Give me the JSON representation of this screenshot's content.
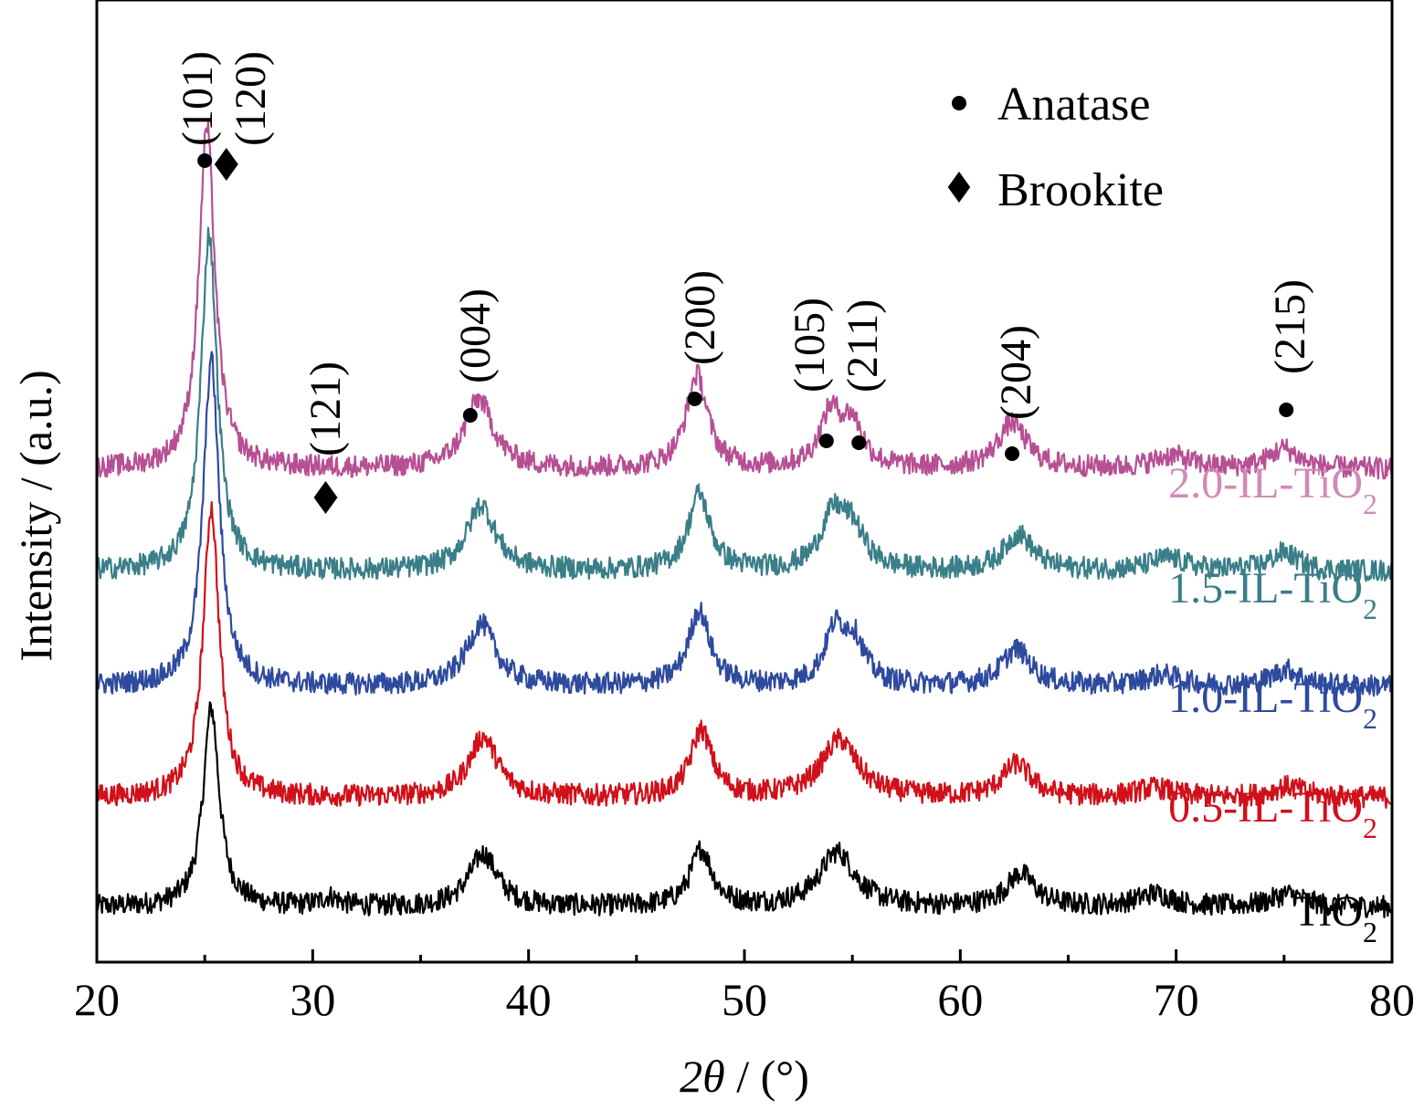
{
  "chart_data": {
    "type": "line",
    "title": "",
    "xlabel": "2θ / (°)",
    "xlabel_parts": {
      "var": "2θ",
      "rest": " / (°)"
    },
    "ylabel": "Intensity / (a.u.)",
    "xlim": [
      20,
      80
    ],
    "x_ticks": [
      20,
      30,
      40,
      50,
      60,
      70,
      80
    ],
    "x_tick_labels": [
      "20",
      "30",
      "40",
      "50",
      "60",
      "70",
      "80"
    ],
    "y_ticks_visible": false,
    "grid": false,
    "legend": {
      "placement": "top-right",
      "items": [
        {
          "marker": "circle",
          "label": "Anatase"
        },
        {
          "marker": "diamond",
          "label": "Brookite"
        }
      ]
    },
    "series": [
      {
        "name": "TiO2",
        "label_main": "TiO",
        "label_sub": "2",
        "color": "#000000",
        "baseline": 40,
        "noise": 12,
        "peaks": [
          {
            "x": 25.3,
            "height": 218,
            "width": 0.45
          },
          {
            "x": 30.8,
            "height": 10,
            "width": 0.5
          },
          {
            "x": 37.9,
            "height": 58,
            "width": 0.8
          },
          {
            "x": 48.0,
            "height": 62,
            "width": 0.6
          },
          {
            "x": 54.3,
            "height": 60,
            "width": 1.0
          },
          {
            "x": 62.8,
            "height": 36,
            "width": 0.8
          },
          {
            "x": 69.0,
            "height": 14,
            "width": 1.0
          },
          {
            "x": 75.2,
            "height": 14,
            "width": 0.9
          }
        ]
      },
      {
        "name": "0.5-IL-TiO2",
        "label_main": "0.5-IL-TiO",
        "label_sub": "2",
        "color": "#d0101a",
        "baseline": 160,
        "noise": 12,
        "peaks": [
          {
            "x": 25.3,
            "height": 318,
            "width": 0.45
          },
          {
            "x": 37.9,
            "height": 66,
            "width": 0.8
          },
          {
            "x": 48.0,
            "height": 73,
            "width": 0.6
          },
          {
            "x": 54.4,
            "height": 63,
            "width": 1.0
          },
          {
            "x": 62.6,
            "height": 36,
            "width": 0.8
          },
          {
            "x": 69.0,
            "height": 10,
            "width": 1.0
          },
          {
            "x": 75.2,
            "height": 12,
            "width": 0.9
          }
        ]
      },
      {
        "name": "1.0-IL-TiO2",
        "label_main": "1.0-IL-TiO",
        "label_sub": "2",
        "color": "#2e4a9e",
        "baseline": 282,
        "noise": 12,
        "peaks": [
          {
            "x": 25.3,
            "height": 358,
            "width": 0.45
          },
          {
            "x": 37.8,
            "height": 68,
            "width": 0.8
          },
          {
            "x": 47.9,
            "height": 82,
            "width": 0.6
          },
          {
            "x": 54.2,
            "height": 58,
            "width": 0.6
          },
          {
            "x": 55.1,
            "height": 44,
            "width": 0.6
          },
          {
            "x": 62.6,
            "height": 40,
            "width": 0.8
          },
          {
            "x": 69.4,
            "height": 12,
            "width": 1.0
          },
          {
            "x": 75.1,
            "height": 18,
            "width": 0.8
          }
        ]
      },
      {
        "name": "1.5-IL-TiO2",
        "label_main": "1.5-IL-TiO",
        "label_sub": "2",
        "color": "#3a7e88",
        "baseline": 408,
        "noise": 12,
        "peaks": [
          {
            "x": 25.2,
            "height": 370,
            "width": 0.45
          },
          {
            "x": 37.8,
            "height": 72,
            "width": 0.8
          },
          {
            "x": 47.9,
            "height": 84,
            "width": 0.6
          },
          {
            "x": 54.1,
            "height": 56,
            "width": 0.7
          },
          {
            "x": 55.0,
            "height": 40,
            "width": 0.7
          },
          {
            "x": 62.7,
            "height": 40,
            "width": 0.8
          },
          {
            "x": 69.6,
            "height": 14,
            "width": 1.0
          },
          {
            "x": 75.0,
            "height": 20,
            "width": 0.8
          }
        ]
      },
      {
        "name": "2.0-IL-TiO2",
        "label_main": "2.0-IL-TiO",
        "label_sub": "2",
        "color": "#b74f94",
        "baseline": 520,
        "noise": 12,
        "peaks": [
          {
            "x": 25.1,
            "height": 375,
            "width": 0.45
          },
          {
            "x": 37.7,
            "height": 76,
            "width": 0.8
          },
          {
            "x": 47.8,
            "height": 102,
            "width": 0.6
          },
          {
            "x": 54.0,
            "height": 58,
            "width": 0.6
          },
          {
            "x": 55.0,
            "height": 45,
            "width": 0.6
          },
          {
            "x": 62.4,
            "height": 50,
            "width": 0.8
          },
          {
            "x": 69.8,
            "height": 14,
            "width": 1.0
          },
          {
            "x": 75.0,
            "height": 22,
            "width": 0.8
          }
        ]
      }
    ],
    "series_label_colors": [
      "#000000",
      "#d0101a",
      "#2e4a9e",
      "#3a7e88",
      "#d08ab8"
    ],
    "peak_annotations": [
      {
        "text": "(101)",
        "marker": "circle",
        "x": 25.0
      },
      {
        "text": "(120)",
        "marker": "diamond",
        "x": 26.0
      },
      {
        "text": "(121)",
        "marker": "diamond",
        "x": 30.6
      },
      {
        "text": "(004)",
        "marker": "circle",
        "x": 37.3
      },
      {
        "text": "(200)",
        "marker": "circle",
        "x": 47.7
      },
      {
        "text": "(105)",
        "marker": "circle",
        "x": 53.8
      },
      {
        "text": "(211)",
        "marker": "circle",
        "x": 55.3
      },
      {
        "text": "(204)",
        "marker": "circle",
        "x": 62.4
      },
      {
        "text": "(215)",
        "marker": "circle",
        "x": 75.1
      }
    ]
  }
}
